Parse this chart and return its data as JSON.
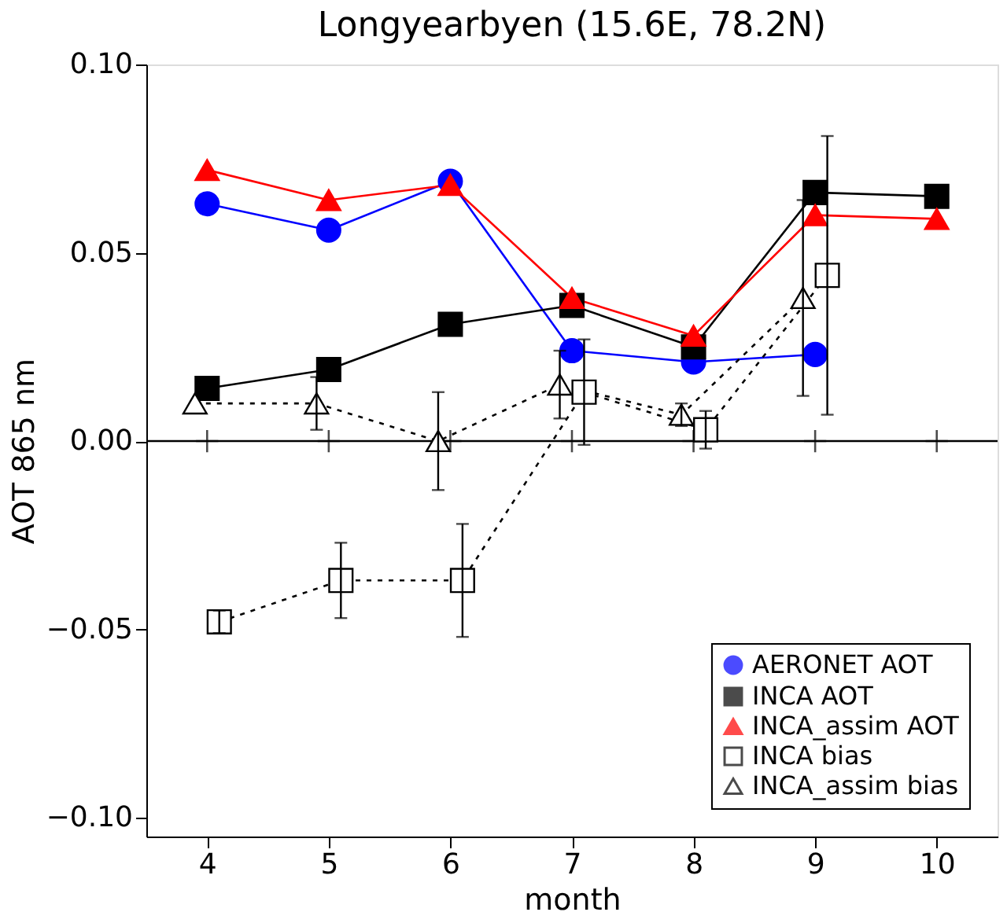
{
  "chart_data": {
    "type": "line",
    "title": "Longyearbyen (15.6E, 78.2N)",
    "xlabel": "month",
    "ylabel": "AOT 865 nm",
    "xlim": [
      3.5,
      10.5
    ],
    "xticks": [
      4,
      5,
      6,
      7,
      8,
      9,
      10
    ],
    "ylim": [
      -0.105,
      0.1
    ],
    "yticks": [
      {
        "value": -0.1,
        "label": "−0.10"
      },
      {
        "value": -0.05,
        "label": "−0.05"
      },
      {
        "value": 0,
        "label": "0.00"
      },
      {
        "value": 0.05,
        "label": "0.05"
      },
      {
        "value": 0.1,
        "label": "0.10"
      }
    ],
    "grid": false,
    "legend": "bottom right",
    "ref_lines": [
      {
        "axis": "y",
        "value": 0,
        "color": "#000000"
      }
    ],
    "series": [
      {
        "name": "AERONET AOT",
        "color": "#0000ff",
        "marker": "circle",
        "line_style": "solid",
        "x": [
          4,
          5,
          6,
          7,
          8,
          9
        ],
        "values": [
          0.063,
          0.056,
          0.069,
          0.024,
          0.021,
          0.023
        ]
      },
      {
        "name": "INCA AOT",
        "color": "#000000",
        "marker": "square",
        "line_style": "solid",
        "x": [
          4,
          5,
          6,
          7,
          8,
          9,
          10
        ],
        "values": [
          0.014,
          0.019,
          0.031,
          0.036,
          0.025,
          0.066,
          0.065
        ]
      },
      {
        "name": "INCA_assim AOT",
        "color": "#ff0000",
        "marker": "triangle",
        "line_style": "solid",
        "x": [
          4,
          5,
          6,
          7,
          8,
          9,
          10
        ],
        "values": [
          0.072,
          0.064,
          0.068,
          0.038,
          0.028,
          0.06,
          0.059
        ]
      },
      {
        "name": "INCA bias",
        "color": "#000000",
        "marker": "square",
        "line_style": "dashed",
        "x": [
          4.1,
          5.1,
          6.1,
          7.1,
          8.1,
          9.1
        ],
        "values": [
          -0.048,
          -0.037,
          -0.037,
          0.013,
          0.003,
          0.044
        ],
        "errors": [
          0.003,
          0.01,
          0.015,
          0.014,
          0.005,
          0.037
        ]
      },
      {
        "name": "INCA_assim bias",
        "color": "#000000",
        "marker": "triangle",
        "line_style": "dashed",
        "x": [
          3.9,
          4.9,
          5.9,
          6.9,
          7.9,
          8.9
        ],
        "values": [
          0.01,
          0.01,
          0.0,
          0.015,
          0.007,
          0.038
        ],
        "errors": [
          null,
          0.007,
          0.013,
          0.009,
          0.003,
          0.026
        ]
      },
      {
        "color": "#000000",
        "type": "scatter",
        "marker": "cross",
        "x": [
          4,
          5,
          6,
          7,
          8,
          9,
          10
        ],
        "values": [
          0,
          0,
          0,
          0,
          0,
          0,
          0
        ]
      }
    ]
  }
}
